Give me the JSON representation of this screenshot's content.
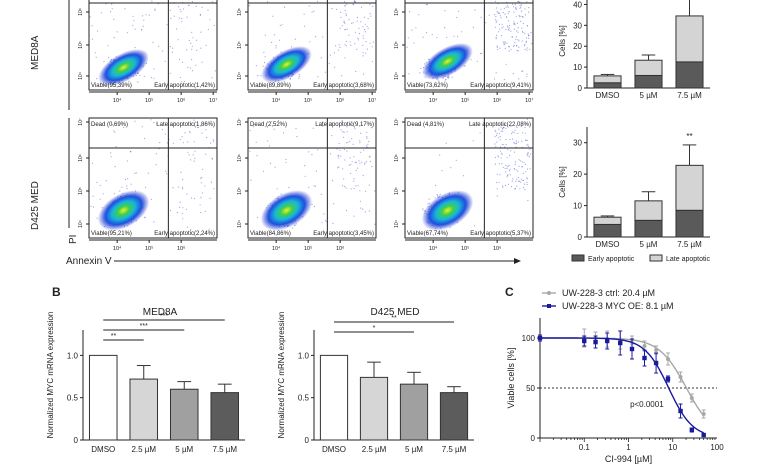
{
  "panel_labels": {
    "b": "B",
    "c": "C"
  },
  "flow": {
    "row_labels": [
      "MED8A",
      "D425 MED"
    ],
    "y_axis_label": "PI",
    "x_axis_label": "Annexin V",
    "x_ticks": [
      "10⁴",
      "10⁵",
      "10⁶",
      "10⁷"
    ],
    "x_ticks_row2": [
      "10⁴",
      "10⁵",
      "10⁶"
    ],
    "y_ticks": [
      "10⁴",
      "10⁵",
      "10⁶",
      "10⁷"
    ],
    "plots": [
      {
        "row": 0,
        "col": 0,
        "viable": "Viable(95,39%)",
        "early": "Early apoptotic(1,42%)",
        "dead": "",
        "late": ""
      },
      {
        "row": 0,
        "col": 1,
        "viable": "Viable(89,89%)",
        "early": "Early apoptotic(3,68%)",
        "dead": "",
        "late": ""
      },
      {
        "row": 0,
        "col": 2,
        "viable": "Viable(73,62%)",
        "early": "Early apoptotic(9,41%)",
        "dead": "",
        "late": ""
      },
      {
        "row": 1,
        "col": 0,
        "viable": "Viable(95,21%)",
        "early": "Early apoptotic(2,24%)",
        "dead": "Dead (0,69%)",
        "late": "Late apoptotic(1,86%)"
      },
      {
        "row": 1,
        "col": 1,
        "viable": "Viable(84,86%)",
        "early": "Early apoptotic(3,45%)",
        "dead": "Dead (2,52%)",
        "late": "Late apoptotic(9,17%)"
      },
      {
        "row": 1,
        "col": 2,
        "viable": "Viable(67,74%)",
        "early": "Early apoptotic(5,37%)",
        "dead": "Dead (4,81%)",
        "late": "Late apoptotic(22,08%)"
      }
    ]
  },
  "chart_data": [
    {
      "id": "stacked-med8a",
      "type": "bar",
      "stacked": true,
      "title": "",
      "xlabel": "",
      "ylabel": "Cells [%]",
      "categories": [
        "DMSO",
        "5 µM",
        "7.5 µM"
      ],
      "ylim": [
        0,
        45
      ],
      "yticks": [
        0,
        10,
        20,
        30,
        40
      ],
      "series": [
        {
          "name": "Early apoptotic",
          "color": "#5a5a5a",
          "values": [
            2.5,
            6.0,
            12.5
          ],
          "err": [
            1.5,
            2.0,
            2.0
          ]
        },
        {
          "name": "Late apoptotic",
          "color": "#d4d4d4",
          "values": [
            3.3,
            7.3,
            22.0
          ],
          "err": [
            0.7,
            2.5,
            12.0
          ]
        }
      ]
    },
    {
      "id": "stacked-d425",
      "type": "bar",
      "stacked": true,
      "title": "",
      "xlabel": "",
      "ylabel": "Cells [%]",
      "categories": [
        "DMSO",
        "5 µM",
        "7.5 µM"
      ],
      "ylim": [
        0,
        35
      ],
      "yticks": [
        0,
        10,
        20,
        30
      ],
      "annotations": [
        {
          "category": "7.5 µM",
          "text": "**"
        }
      ],
      "legend": {
        "position": "bottom",
        "entries": [
          "Early apoptotic",
          "Late apoptotic"
        ]
      },
      "series": [
        {
          "name": "Early apoptotic",
          "color": "#5a5a5a",
          "values": [
            4.0,
            5.3,
            8.5
          ],
          "err": [
            1.0,
            0.3,
            1.3
          ]
        },
        {
          "name": "Late apoptotic",
          "color": "#d4d4d4",
          "values": [
            2.3,
            6.2,
            14.3
          ],
          "err": [
            0.4,
            2.9,
            6.5
          ]
        }
      ]
    },
    {
      "id": "myc-med8a",
      "type": "bar",
      "title": "MED8A",
      "xlabel": "",
      "ylabel": "Normalized MYC mRNA expression",
      "categories": [
        "DMSO",
        "2.5 µM",
        "5 µM",
        "7.5 µM"
      ],
      "values": [
        1.0,
        0.72,
        0.6,
        0.56
      ],
      "err": [
        0,
        0.16,
        0.09,
        0.1
      ],
      "colors": [
        "#ffffff",
        "#d6d6d6",
        "#a0a0a0",
        "#5c5c5c"
      ],
      "ylim": [
        0,
        1.3
      ],
      "yticks": [
        0,
        0.5,
        1.0
      ],
      "ytick_labels": [
        "0",
        "0.5",
        "1.0"
      ],
      "significance": [
        {
          "from": "DMSO",
          "to": "2.5 µM",
          "text": "**"
        },
        {
          "from": "DMSO",
          "to": "5 µM",
          "text": "***"
        },
        {
          "from": "DMSO",
          "to": "7.5 µM",
          "text": "***"
        }
      ]
    },
    {
      "id": "myc-d425",
      "type": "bar",
      "title": "D425 MED",
      "xlabel": "",
      "ylabel": "Normalized MYC mRNA expression",
      "categories": [
        "DMSO",
        "2.5 µM",
        "5 µM",
        "7.5 µM"
      ],
      "values": [
        1.0,
        0.74,
        0.66,
        0.56
      ],
      "err": [
        0,
        0.18,
        0.14,
        0.07
      ],
      "colors": [
        "#ffffff",
        "#d6d6d6",
        "#a0a0a0",
        "#5c5c5c"
      ],
      "ylim": [
        0,
        1.3
      ],
      "yticks": [
        0,
        0.5,
        1.0
      ],
      "ytick_labels": [
        "0",
        "0.5",
        "1.0"
      ],
      "significance": [
        {
          "from": "DMSO",
          "to": "5 µM",
          "text": "*"
        },
        {
          "from": "DMSO",
          "to": "7.5 µM",
          "text": "**"
        }
      ]
    },
    {
      "id": "dose-response",
      "type": "line",
      "title": "",
      "xlabel": "CI-994 [µM]",
      "ylabel": "Viable cells [%]",
      "xscale": "log",
      "xlim": [
        0.01,
        100
      ],
      "ylim": [
        0,
        120
      ],
      "xticks": [
        0.1,
        1,
        10,
        100
      ],
      "xtick_labels": [
        "0.1",
        "1",
        "10",
        "100"
      ],
      "yticks": [
        0,
        50,
        100
      ],
      "reference_line": 50,
      "annotation": "p<0.0001",
      "legend": {
        "position": "top-left"
      },
      "series": [
        {
          "name": "UW-228-3 ctrl: 20.4 µM",
          "color": "#a8a8a8",
          "ic50": 20.4,
          "x": [
            0.01,
            0.1,
            0.18,
            0.33,
            0.65,
            1.2,
            2.3,
            4.2,
            7.8,
            15,
            27,
            50
          ],
          "y": [
            100,
            100,
            100,
            99,
            98,
            98,
            92,
            88,
            79,
            61,
            40,
            24
          ],
          "err": [
            3,
            9,
            6,
            8,
            9,
            4,
            5,
            4,
            6,
            5,
            4,
            4
          ]
        },
        {
          "name": "UW-228-3 MYC OE: 8.1 µM",
          "color": "#1a1a9c",
          "ic50": 8.1,
          "x": [
            0.01,
            0.1,
            0.18,
            0.33,
            0.65,
            1.2,
            2.3,
            4.2,
            7.8,
            15,
            27,
            50
          ],
          "y": [
            100,
            97,
            96,
            97,
            95,
            89,
            80,
            75,
            59,
            27,
            8,
            3
          ],
          "err": [
            3,
            5,
            6,
            8,
            12,
            10,
            8,
            10,
            3,
            7,
            2,
            1
          ]
        }
      ]
    }
  ]
}
